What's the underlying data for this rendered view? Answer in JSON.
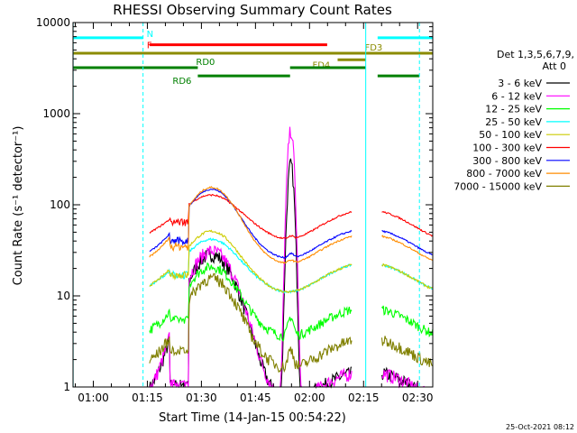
{
  "chart_data": {
    "type": "line",
    "title": "RHESSI Observing Summary Count Rates",
    "xlabel": "Start Time (14-Jan-15 00:54:22)",
    "ylabel": "Count Rate (s⁻¹ detector⁻¹)",
    "ylog": true,
    "ylim": [
      1,
      10000
    ],
    "xlim_minutes": [
      54.37,
      154.2
    ],
    "x_ticks": [
      {
        "m": 60,
        "label": "01:00"
      },
      {
        "m": 75,
        "label": "01:15"
      },
      {
        "m": 90,
        "label": "01:30"
      },
      {
        "m": 105,
        "label": "01:45"
      },
      {
        "m": 120,
        "label": "02:00"
      },
      {
        "m": 135,
        "label": "02:15"
      },
      {
        "m": 150,
        "label": "02:30"
      }
    ],
    "y_ticks": [
      {
        "v": 1,
        "label": "1"
      },
      {
        "v": 10,
        "label": "10"
      },
      {
        "v": 100,
        "label": "100"
      },
      {
        "v": 1000,
        "label": "1000"
      },
      {
        "v": 10000,
        "label": "10000"
      }
    ],
    "legend": {
      "title_line1": "Det 1,3,5,6,7,9,",
      "title_line2": "Att 0",
      "placement": "right"
    },
    "series": [
      {
        "name": "3 - 6 keV",
        "color": "#000000",
        "base": 1.1,
        "flare": 430,
        "hump": 20,
        "noise": 0.18
      },
      {
        "name": "6 - 12 keV",
        "color": "#ff00ff",
        "base": 1.1,
        "flare": 1000,
        "hump": 22,
        "noise": 0.18
      },
      {
        "name": "12 - 25 keV",
        "color": "#00ff00",
        "base": 5.5,
        "flare": 9,
        "hump": 10,
        "noise": 0.12
      },
      {
        "name": "25 - 50 keV",
        "color": "#00ffff",
        "base": 17,
        "flare": 17,
        "hump": 14,
        "noise": 0.03
      },
      {
        "name": "50 - 100 keV",
        "color": "#cccc00",
        "base": 17,
        "flare": 17,
        "hump": 21,
        "noise": 0.03
      },
      {
        "name": "100 - 300 keV",
        "color": "#ff0000",
        "base": 65,
        "flare": 70,
        "hump": 30,
        "noise": 0.02
      },
      {
        "name": "300 - 800 keV",
        "color": "#0000ff",
        "base": 40,
        "flare": 45,
        "hump": 70,
        "noise": 0.02
      },
      {
        "name": "800 - 7000 keV",
        "color": "#ff8c00",
        "base": 35,
        "flare": 38,
        "hump": 80,
        "noise": 0.02
      },
      {
        "name": "7000 - 15000 keV",
        "color": "#808000",
        "base": 2.5,
        "flare": 4,
        "hump": 9,
        "noise": 0.15
      }
    ],
    "data_window_minutes": [
      75.6,
      154.2
    ],
    "data_gaps_minutes": [
      [
        81.2,
        86.5
      ],
      [
        131.8,
        136.0
      ],
      [
        136.0,
        140.0
      ]
    ],
    "flag_bars": [
      {
        "label": "N",
        "color": "#00ffff",
        "level": 6800,
        "segments": [
          [
            54.4,
            73.8
          ],
          [
            138.9,
            154.2
          ]
        ]
      },
      {
        "label": "F",
        "color": "#ff0000",
        "level": 5700,
        "segments": [
          [
            75.6,
            124.9
          ]
        ]
      },
      {
        "label": "FD3",
        "color": "#8b8b00",
        "level": 4600,
        "segments": [
          [
            54.4,
            154.2
          ]
        ]
      },
      {
        "label": "FD4",
        "color": "#8b8b00",
        "level": 3900,
        "segments": [
          [
            127.8,
            135.6
          ]
        ]
      },
      {
        "label": "RD0",
        "color": "#008000",
        "level": 3200,
        "segments": [
          [
            54.4,
            89.0
          ],
          [
            114.6,
            135.6
          ]
        ]
      },
      {
        "label": "RD6",
        "color": "#008000",
        "level": 2600,
        "segments": [
          [
            89.0,
            114.6
          ],
          [
            138.9,
            150.5
          ]
        ]
      }
    ],
    "vertical_markers": [
      {
        "m": 54.4,
        "color": "#00ffff",
        "style": "solid"
      },
      {
        "m": 73.8,
        "color": "#00ffff",
        "style": "dashed"
      },
      {
        "m": 135.6,
        "color": "#00ffff",
        "style": "solid"
      },
      {
        "m": 150.5,
        "color": "#00ffff",
        "style": "dashed"
      }
    ]
  },
  "footer": {
    "timestamp": "25-Oct-2021 08:12"
  }
}
